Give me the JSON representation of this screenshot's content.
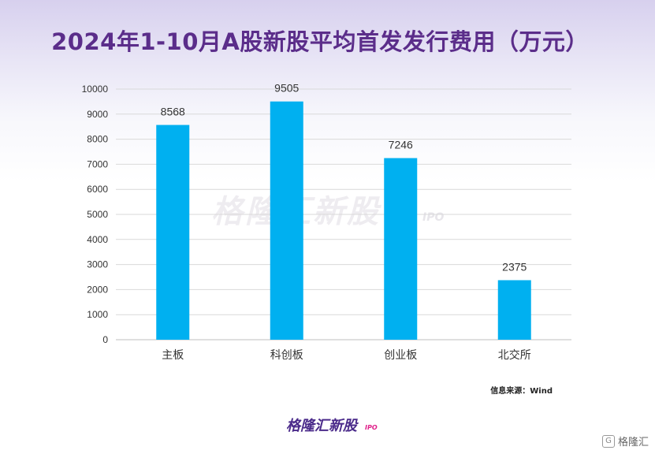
{
  "title": "2024年1-10月A股新股平均首发发行费用（万元）",
  "watermark": {
    "text": "格隆汇新股",
    "sub": "IPO"
  },
  "source": "信息来源：Wind",
  "logo": {
    "text": "格隆汇新股",
    "sub": "IPO"
  },
  "corner_mark": {
    "icon": "G",
    "text": "格隆汇"
  },
  "colors": {
    "bar": "#00b0f0",
    "title": "#5b2d8a",
    "grid": "#d9d9d9"
  },
  "chart_data": {
    "type": "bar",
    "title": "2024年1-10月A股新股平均首发发行费用（万元）",
    "categories": [
      "主板",
      "科创板",
      "创业板",
      "北交所"
    ],
    "values": [
      8568,
      9505,
      7246,
      2375
    ],
    "data_labels": [
      "8568",
      "9505",
      "7246",
      "2375"
    ],
    "xlabel": "",
    "ylabel": "",
    "ylim": [
      0,
      10000
    ],
    "yticks": [
      0,
      1000,
      2000,
      3000,
      4000,
      5000,
      6000,
      7000,
      8000,
      9000,
      10000
    ],
    "grid": true,
    "legend": "none"
  }
}
